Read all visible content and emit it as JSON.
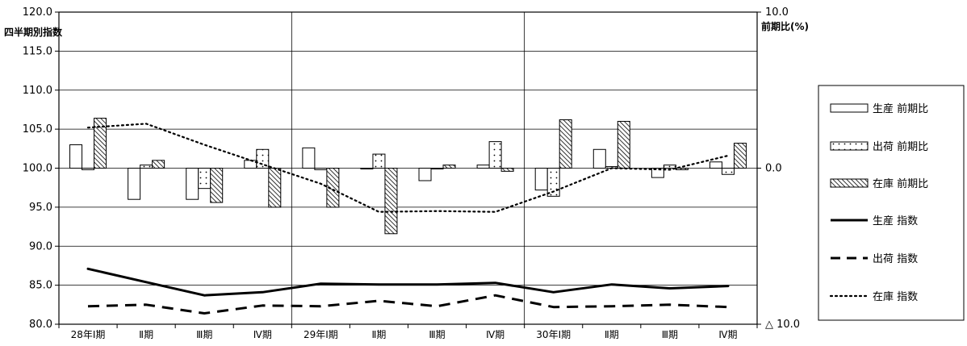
{
  "chart_data": {
    "type": "bar",
    "y_left_label": "四半期別指数",
    "y_right_label": "前期比(%)",
    "y_left_range": [
      80,
      120
    ],
    "y_right_range": [
      -10,
      10
    ],
    "y_left_ticks": [
      "80.0",
      "85.0",
      "90.0",
      "95.0",
      "100.0",
      "105.0",
      "110.0",
      "115.0",
      "120.0"
    ],
    "y_right_ticks": [
      {
        "value": 10,
        "label": "10.0"
      },
      {
        "value": 0,
        "label": "0.0"
      },
      {
        "value": -10,
        "label": "△ 10.0"
      }
    ],
    "categories": [
      "28年Ⅰ期",
      "Ⅱ期",
      "Ⅲ期",
      "Ⅳ期",
      "29年Ⅰ期",
      "Ⅱ期",
      "Ⅲ期",
      "Ⅳ期",
      "30年Ⅰ期",
      "Ⅱ期",
      "Ⅲ期",
      "Ⅳ期"
    ],
    "bar_series": [
      {
        "name": "生産 前期比",
        "pattern": "white",
        "values": [
          1.5,
          -2.0,
          -2.0,
          0.5,
          1.3,
          0.0,
          -0.8,
          0.2,
          -1.4,
          1.2,
          -0.6,
          0.4
        ]
      },
      {
        "name": "出荷 前期比",
        "pattern": "dots",
        "values": [
          -0.1,
          0.2,
          -1.3,
          1.2,
          -0.1,
          0.9,
          0.0,
          1.7,
          -1.8,
          0.1,
          0.2,
          -0.4
        ]
      },
      {
        "name": "在庫 前期比",
        "pattern": "hatch",
        "values": [
          3.2,
          0.5,
          -2.2,
          -2.5,
          -2.5,
          -4.2,
          0.2,
          -0.2,
          3.1,
          3.0,
          -0.1,
          1.6
        ]
      }
    ],
    "line_series": [
      {
        "name": "生産 指数",
        "style": "solid",
        "values": [
          87.1,
          85.4,
          83.7,
          84.1,
          85.2,
          85.1,
          85.1,
          85.3,
          84.1,
          85.1,
          84.6,
          84.9
        ]
      },
      {
        "name": "出荷 指数",
        "style": "dashed",
        "values": [
          82.3,
          82.5,
          81.4,
          82.4,
          82.3,
          83.0,
          82.3,
          83.7,
          82.2,
          82.3,
          82.5,
          82.2
        ]
      },
      {
        "name": "在庫 指数",
        "style": "dotted",
        "values": [
          105.2,
          105.7,
          103.0,
          100.5,
          98.0,
          94.4,
          94.5,
          94.4,
          97.0,
          100.0,
          99.8,
          101.6
        ]
      }
    ],
    "legend_placement": "right",
    "colors": {
      "line": "#000000",
      "bar_fill": "#ffffff",
      "bar_pattern": "#000000"
    }
  }
}
